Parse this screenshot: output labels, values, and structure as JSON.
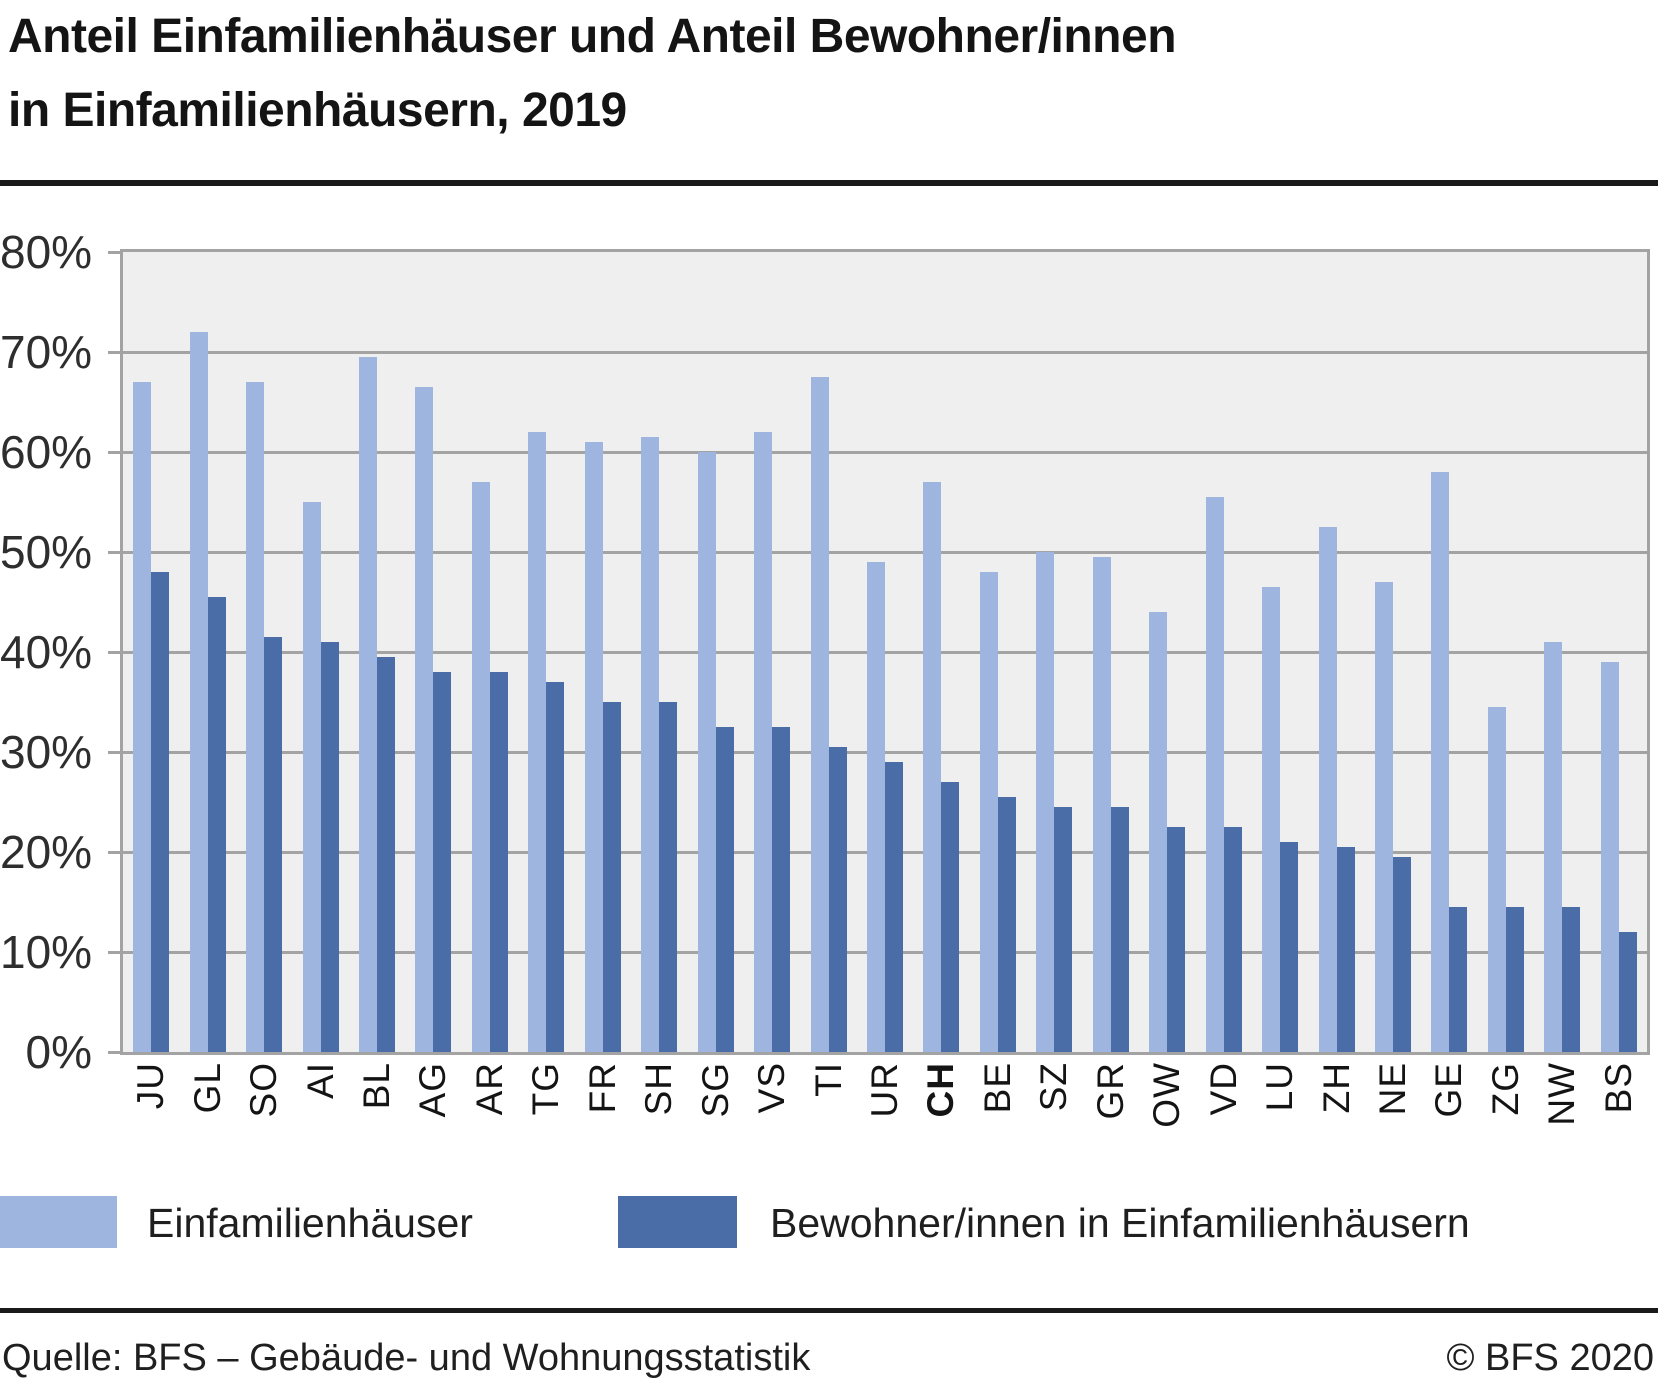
{
  "title": {
    "line1": "Anteil Einfamilienhäuser und Anteil Bewohner/innen",
    "line2": "in Einfamilienhäusern, 2019"
  },
  "colors": {
    "light_blue": "#9EB5DF",
    "dark_blue": "#4A6DA8",
    "plot_background": "#EFEFF0",
    "gridline": "#A3A3A3",
    "rule": "#1a1a1a"
  },
  "chart_data": {
    "type": "bar",
    "title": "Anteil Einfamilienhäuser und Anteil Bewohner/innen in Einfamilienhäusern, 2019",
    "categories": [
      "JU",
      "GL",
      "SO",
      "AI",
      "BL",
      "AG",
      "AR",
      "TG",
      "FR",
      "SH",
      "SG",
      "VS",
      "TI",
      "UR",
      "CH",
      "BE",
      "SZ",
      "GR",
      "OW",
      "VD",
      "LU",
      "ZH",
      "NE",
      "GE",
      "ZG",
      "NW",
      "BS"
    ],
    "emphasized_category": "CH",
    "series": [
      {
        "name": "Einfamilienhäuser",
        "color": "#9EB5DF",
        "values": [
          67,
          72,
          67,
          55,
          69.5,
          66.5,
          57,
          62,
          61,
          61.5,
          60,
          62,
          67.5,
          49,
          57,
          48,
          50,
          49.5,
          44,
          55.5,
          46.5,
          52.5,
          47,
          58,
          34.5,
          41,
          39
        ]
      },
      {
        "name": "Bewohner/innen in Einfamilienhäusern",
        "color": "#4A6DA8",
        "values": [
          48,
          45.5,
          41.5,
          41,
          39.5,
          38,
          38,
          37,
          35,
          35,
          32.5,
          32.5,
          30.5,
          29,
          27,
          25.5,
          24.5,
          24.5,
          22.5,
          22.5,
          21,
          20.5,
          19.5,
          14.5,
          14.5,
          14.5,
          12
        ]
      }
    ],
    "xlabel": "",
    "ylabel": "",
    "ylim": [
      0,
      80
    ],
    "yticks": [
      "80%",
      "70%",
      "60%",
      "50%",
      "40%",
      "30%",
      "20%",
      "10%",
      "0%"
    ],
    "grid": true,
    "legend_position": "bottom"
  },
  "legend": [
    {
      "label": "Einfamilienhäuser"
    },
    {
      "label": "Bewohner/innen in Einfamilienhäusern"
    }
  ],
  "footer": {
    "source": "Quelle: BFS – Gebäude- und Wohnungsstatistik",
    "copyright": "© BFS 2020"
  }
}
